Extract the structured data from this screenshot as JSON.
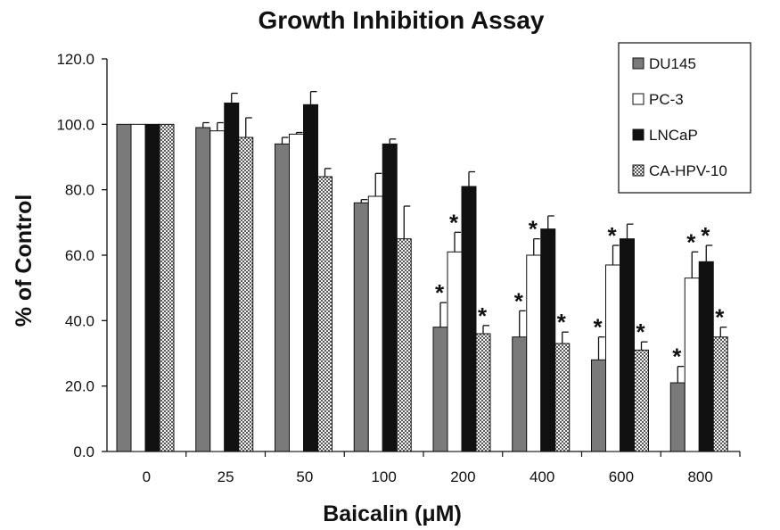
{
  "chart_data": {
    "type": "bar",
    "title": "Growth Inhibition Assay",
    "xlabel": "Baicalin (μM)",
    "ylabel": "% of Control",
    "categories": [
      "0",
      "25",
      "50",
      "100",
      "200",
      "400",
      "600",
      "800"
    ],
    "ylim": [
      0,
      120
    ],
    "yticks": [
      "0.0",
      "20.0",
      "40.0",
      "60.0",
      "80.0",
      "100.0",
      "120.0"
    ],
    "grid": false,
    "legend_position": "top-right",
    "significance_marker": "*",
    "series": [
      {
        "name": "DU145",
        "style": "dark-gray-fill",
        "values": [
          100.0,
          99.0,
          94.0,
          76.0,
          38.0,
          35.0,
          28.0,
          21.0
        ],
        "errors": [
          0,
          1.5,
          2.0,
          1.0,
          7.5,
          8.0,
          7.0,
          5.0
        ],
        "significant": [
          false,
          false,
          false,
          false,
          true,
          true,
          true,
          true
        ]
      },
      {
        "name": "PC-3",
        "style": "white-fill",
        "values": [
          100.0,
          98.0,
          97.0,
          78.0,
          61.0,
          60.0,
          57.0,
          53.0
        ],
        "errors": [
          0,
          2.5,
          0.5,
          7.0,
          6.0,
          5.0,
          6.0,
          8.0
        ],
        "significant": [
          false,
          false,
          false,
          false,
          true,
          true,
          true,
          true
        ]
      },
      {
        "name": "LNCaP",
        "style": "black-fill",
        "values": [
          100.0,
          106.5,
          106.0,
          94.0,
          81.0,
          68.0,
          65.0,
          58.0
        ],
        "errors": [
          0,
          3.0,
          4.0,
          1.5,
          4.5,
          4.0,
          4.5,
          5.0
        ],
        "significant": [
          false,
          false,
          false,
          false,
          false,
          false,
          false,
          true
        ]
      },
      {
        "name": "CA-HPV-10",
        "style": "checkered-fill",
        "values": [
          100.0,
          96.0,
          84.0,
          65.0,
          36.0,
          33.0,
          31.0,
          35.0
        ],
        "errors": [
          0,
          6.0,
          2.5,
          10.0,
          2.5,
          3.5,
          2.5,
          3.0
        ],
        "significant": [
          false,
          false,
          false,
          false,
          true,
          true,
          true,
          true
        ]
      }
    ]
  }
}
